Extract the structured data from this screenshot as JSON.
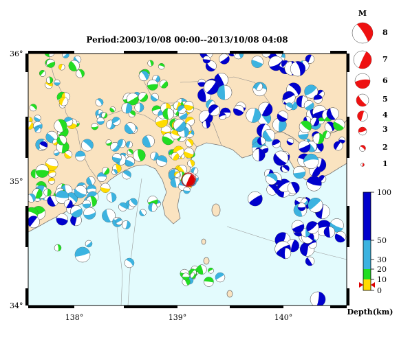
{
  "title": "Period:2003/10/08 00:00--2013/10/08 04:08",
  "map": {
    "lat_labels": [
      "36°",
      "35°",
      "34°"
    ],
    "lon_labels": [
      "138°",
      "139°",
      "140°"
    ],
    "colors": {
      "land": "#fae3c0",
      "sea": "#e3fbfd",
      "coast": "#777777"
    }
  },
  "magnitude_legend": {
    "heading": "M",
    "entries": [
      "8",
      "7",
      "6",
      "5",
      "4",
      "3",
      "2",
      "1"
    ],
    "color": "#ee1111"
  },
  "depth_scale": {
    "label": "Depth(km)",
    "ticks": [
      "100",
      "50",
      "30",
      "20",
      "10",
      "0"
    ],
    "bands": [
      {
        "from": 0,
        "to": 10,
        "color": "#ffdc00"
      },
      {
        "from": 10,
        "to": 20,
        "color": "#22dd22"
      },
      {
        "from": 20,
        "to": 50,
        "color": "#3cb3e0"
      },
      {
        "from": 50,
        "to": 100,
        "color": "#0000cc"
      }
    ]
  },
  "mainshock": {
    "color": "#dd0000",
    "marker": "red-star"
  }
}
